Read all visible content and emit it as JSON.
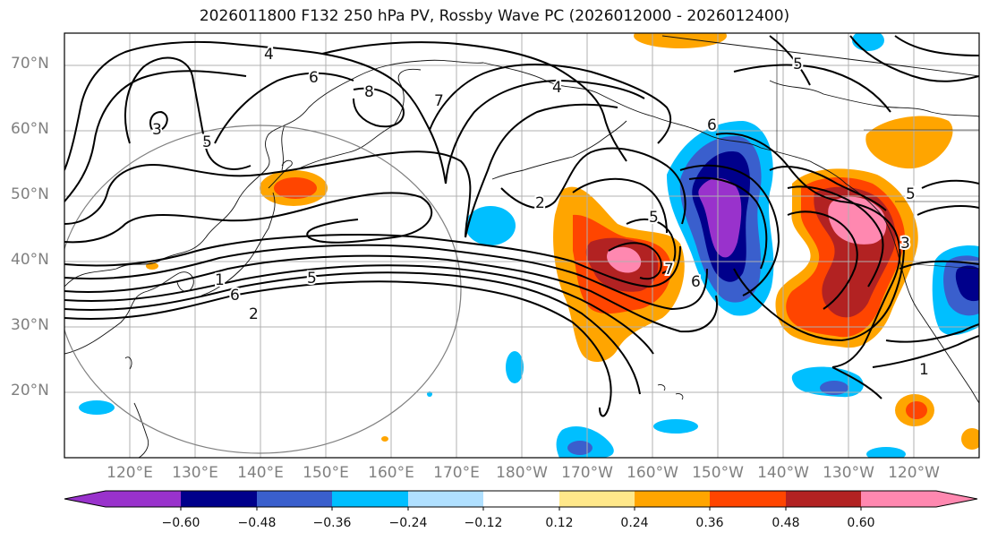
{
  "title": "2026011800 F132 250 hPa PV, Rossby Wave PC (2026012000 - 2026012400)",
  "lat_labels": [
    "70°N",
    "60°N",
    "50°N",
    "40°N",
    "30°N",
    "20°N"
  ],
  "lon_labels": [
    "120°E",
    "130°E",
    "140°E",
    "150°E",
    "160°E",
    "170°E",
    "180°W",
    "170°W",
    "160°W",
    "150°W",
    "140°W",
    "130°W",
    "120°W"
  ],
  "contour_labels": [
    "4",
    "6",
    "8",
    "3",
    "5",
    "7",
    "2",
    "1",
    "6",
    "5",
    "2",
    "5",
    "7",
    "6",
    "6",
    "5",
    "4",
    "3",
    "1",
    "5"
  ],
  "colorbar": {
    "ticks": [
      "−0.60",
      "−0.48",
      "−0.36",
      "−0.24",
      "−0.12",
      "0.12",
      "0.24",
      "0.36",
      "0.48",
      "0.60"
    ],
    "colors": [
      "#9932cc",
      "#00008b",
      "#3a5fcd",
      "#00bfff",
      "#b0e0ff",
      "#ffffff",
      "#ffe88a",
      "#ffa500",
      "#ff4500",
      "#b22222",
      "#ff88b0",
      "#ff88b0"
    ]
  },
  "palette": {
    "strong_neg": "#9932cc",
    "neg_2": "#00008b",
    "neg_3": "#3a5fcd",
    "neg_4": "#00bfff",
    "neg_5": "#b0e0ff",
    "pos_1": "#ffe88a",
    "pos_2": "#ffa500",
    "pos_3": "#ff4500",
    "pos_4": "#b22222",
    "pos_5": "#ff88b0"
  }
}
